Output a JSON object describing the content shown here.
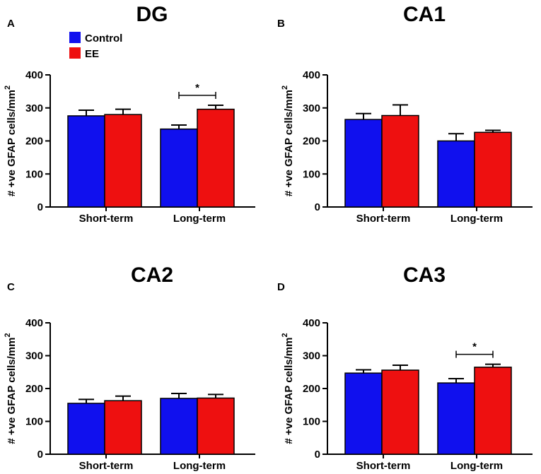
{
  "colors": {
    "control": "#1010ee",
    "ee": "#ee1010",
    "axis": "#000000"
  },
  "legend": {
    "items": [
      {
        "label": "Control",
        "color": "#1010ee"
      },
      {
        "label": "EE",
        "color": "#ee1010"
      }
    ]
  },
  "chart_data": [
    {
      "panel": "A",
      "title": "DG",
      "type": "bar",
      "ylabel": "# +ve GFAP cells/mm",
      "ylabel_sup": "2",
      "ylim": [
        0,
        400
      ],
      "yticks": [
        0,
        100,
        200,
        300,
        400
      ],
      "categories": [
        "Short-term",
        "Long-term"
      ],
      "series": [
        {
          "name": "Control",
          "values": [
            276,
            236
          ],
          "errors": [
            17,
            12
          ]
        },
        {
          "name": "EE",
          "values": [
            280,
            296
          ],
          "errors": [
            16,
            12
          ]
        }
      ],
      "annotations": [
        {
          "category": "Long-term",
          "text": "*"
        }
      ]
    },
    {
      "panel": "B",
      "title": "CA1",
      "type": "bar",
      "ylabel": "# +ve GFAP cells/mm",
      "ylabel_sup": "2",
      "ylim": [
        0,
        400
      ],
      "yticks": [
        0,
        100,
        200,
        300,
        400
      ],
      "categories": [
        "Short-term",
        "Long-term"
      ],
      "series": [
        {
          "name": "Control",
          "values": [
            265,
            200
          ],
          "errors": [
            18,
            22
          ]
        },
        {
          "name": "EE",
          "values": [
            277,
            226
          ],
          "errors": [
            32,
            6
          ]
        }
      ],
      "annotations": []
    },
    {
      "panel": "C",
      "title": "CA2",
      "type": "bar",
      "ylabel": "# +ve GFAP cells/mm",
      "ylabel_sup": "2",
      "ylim": [
        0,
        400
      ],
      "yticks": [
        0,
        100,
        200,
        300,
        400
      ],
      "categories": [
        "Short-term",
        "Long-term"
      ],
      "series": [
        {
          "name": "Control",
          "values": [
            155,
            170
          ],
          "errors": [
            12,
            15
          ]
        },
        {
          "name": "EE",
          "values": [
            163,
            171
          ],
          "errors": [
            14,
            11
          ]
        }
      ],
      "annotations": []
    },
    {
      "panel": "D",
      "title": "CA3",
      "type": "bar",
      "ylabel": "# +ve GFAP cells/mm",
      "ylabel_sup": "2",
      "ylim": [
        0,
        400
      ],
      "yticks": [
        0,
        100,
        200,
        300,
        400
      ],
      "categories": [
        "Short-term",
        "Long-term"
      ],
      "series": [
        {
          "name": "Control",
          "values": [
            247,
            217
          ],
          "errors": [
            10,
            13
          ]
        },
        {
          "name": "EE",
          "values": [
            256,
            265
          ],
          "errors": [
            15,
            9
          ]
        }
      ],
      "annotations": [
        {
          "category": "Long-term",
          "text": "*"
        }
      ]
    }
  ]
}
